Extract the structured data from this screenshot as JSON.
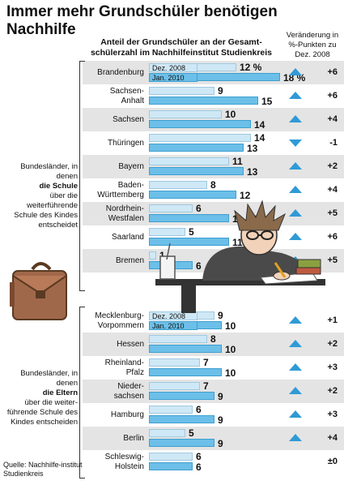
{
  "title": "Immer mehr Grundschüler benötigen Nachhilfe",
  "subtitle": "Anteil der Grundschüler an der Gesamt-schülerzahl im Nachhilfeinstitut Studienkreis",
  "change_header": "Veränderung in %-Punkten zu Dez. 2008",
  "legend": {
    "d2008": "Dez. 2008",
    "d2010": "Jan. 2010"
  },
  "groups": {
    "schule": {
      "before": "Bundesländer, in denen",
      "bold": "die Schule",
      "after": "über die weiterführende Schule des Kindes entscheidet"
    },
    "eltern": {
      "before": "Bundesländer, in denen",
      "bold": "die Eltern",
      "after": "über die weiter-führende Schule des Kindes entscheiden"
    }
  },
  "source": "Quelle: Nachhilfe-institut Studienkreis",
  "colors": {
    "bar_2008": "#cfe8f6",
    "bar_2010": "#6cbfe8",
    "arrow": "#2f9ad6",
    "shade": "#e4e4e4"
  },
  "chart_data": {
    "type": "bar",
    "title": "Immer mehr Grundschüler benötigen Nachhilfe",
    "categories": [
      "Brandenburg",
      "Sachsen-Anhalt",
      "Sachsen",
      "Thüringen",
      "Bayern",
      "Baden-Württemberg",
      "Nordrhein-Westfalen",
      "Saarland",
      "Bremen",
      "Mecklenburg-Vorpommern",
      "Hessen",
      "Rheinland-Pfalz",
      "Nieder-sachsen",
      "Hamburg",
      "Berlin",
      "Schleswig-Holstein"
    ],
    "series": [
      {
        "name": "Dez. 2008",
        "values": [
          12,
          9,
          10,
          14,
          11,
          8,
          6,
          5,
          1,
          9,
          8,
          7,
          7,
          6,
          5,
          6
        ]
      },
      {
        "name": "Jan. 2010",
        "values": [
          18,
          15,
          14,
          13,
          13,
          12,
          11,
          11,
          6,
          10,
          10,
          10,
          9,
          9,
          9,
          6
        ]
      }
    ],
    "value_labels_2008": [
      "12 %",
      "9",
      "10",
      "14",
      "11",
      "8",
      "6",
      "5",
      "1",
      "9",
      "8",
      "7",
      "7",
      "6",
      "5",
      "6"
    ],
    "value_labels_2010": [
      "18 %",
      "15",
      "14",
      "13",
      "13",
      "12",
      "11",
      "11",
      "6",
      "10",
      "10",
      "10",
      "9",
      "9",
      "9",
      "6"
    ],
    "changes": [
      "+6",
      "+6",
      "+4",
      "-1",
      "+2",
      "+4",
      "+5",
      "+6",
      "+5",
      "+1",
      "+2",
      "+3",
      "+2",
      "+3",
      "+4",
      "±0"
    ],
    "xlim": [
      0,
      20
    ]
  }
}
